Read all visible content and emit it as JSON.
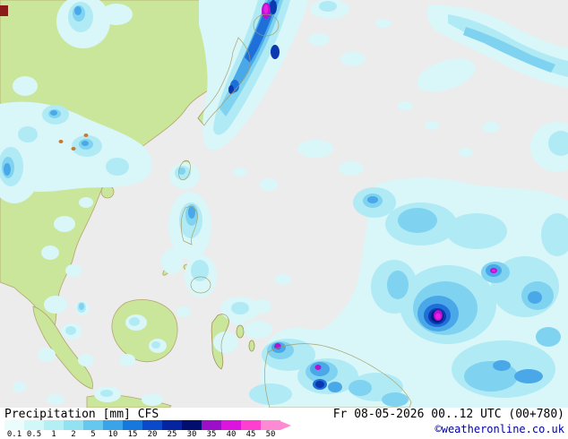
{
  "footer": {
    "caption": "Precipitation [mm] CFS",
    "datetime": "Fr 08-05-2026 00..12 UTC (00+780)",
    "copyright": "©weatheronline.co.uk"
  },
  "legend": {
    "unit": "mm",
    "values": [
      "0.1",
      "0.5",
      "1",
      "2",
      "5",
      "10",
      "15",
      "20",
      "25",
      "30",
      "35",
      "40",
      "45",
      "50"
    ],
    "colors": [
      "#e9fdfd",
      "#d2f7f9",
      "#b4eff6",
      "#92e2f2",
      "#66c8ee",
      "#3ba4e8",
      "#1677dc",
      "#0a4ac8",
      "#0524a0",
      "#020e6e",
      "#9b0fc8",
      "#dd14dd",
      "#ff3fd0",
      "#ff8ad4"
    ],
    "arrow_color": "#ff8ad4"
  },
  "map": {
    "description": "CFS precipitation forecast over East / Southeast Asia and the Western Pacific",
    "sea_color": "#ececec",
    "land_color": "#c9e69a",
    "coast_color": "#a59a5e"
  }
}
